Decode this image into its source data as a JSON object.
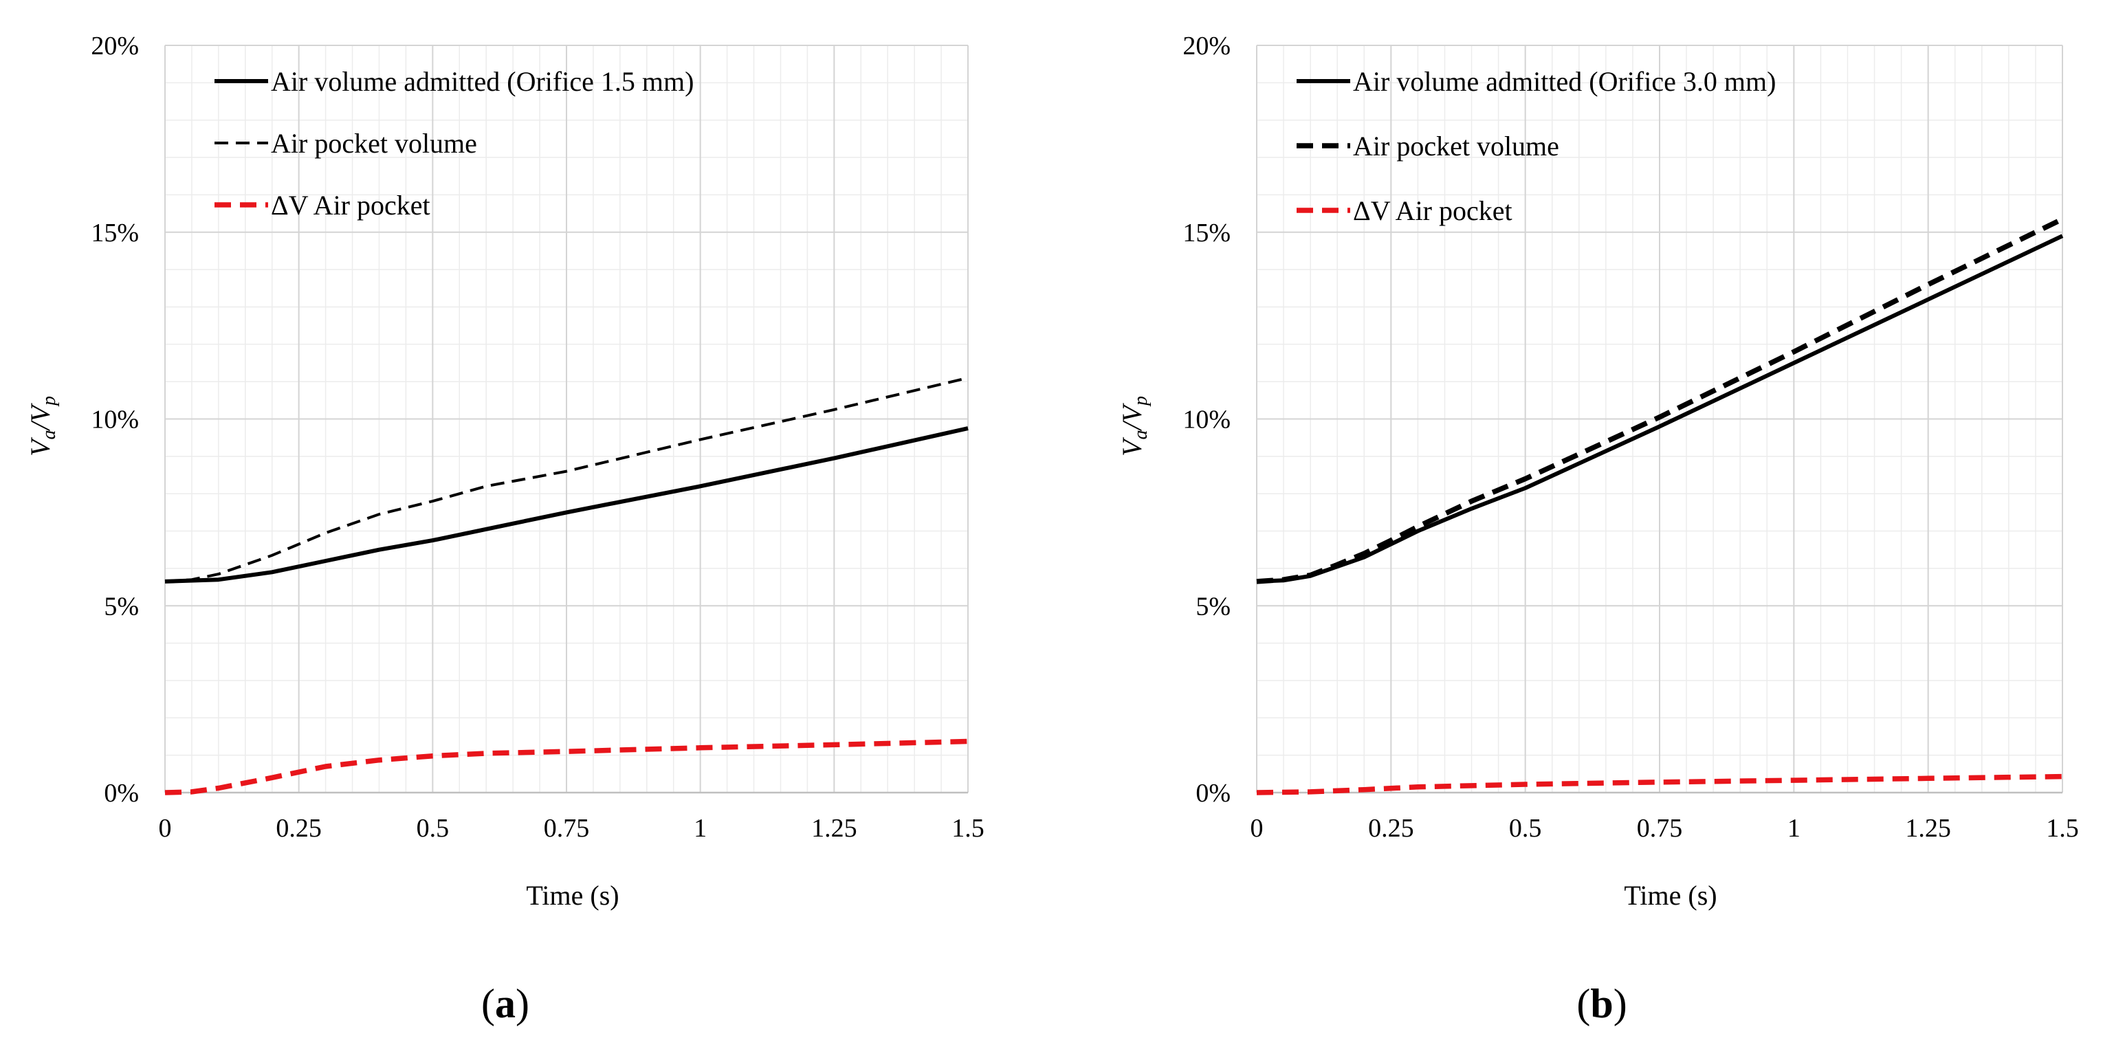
{
  "chart_data": [
    {
      "type": "line",
      "panel_label": "a",
      "xlabel": "Time (s)",
      "ylabel_main": "V",
      "ylabel_sub1": "a",
      "ylabel_sep": "/V",
      "ylabel_sub2": "p",
      "xlim": [
        0,
        1.5
      ],
      "ylim": [
        0,
        20
      ],
      "x_ticks": [
        0,
        0.25,
        0.5,
        0.75,
        1,
        1.25,
        1.5
      ],
      "x_tick_labels": [
        "0",
        "0.25",
        "0.5",
        "0.75",
        "1",
        "1.25",
        "1.5"
      ],
      "y_ticks": [
        0,
        5,
        10,
        15,
        20
      ],
      "y_tick_labels": [
        "0%",
        "5%",
        "10%",
        "15%",
        "20%"
      ],
      "grid": true,
      "legend_position": "top-left",
      "series": [
        {
          "name": "Air volume admitted (Orifice 1.5 mm)",
          "color": "#000000",
          "style": "solid",
          "x": [
            0,
            0.1,
            0.2,
            0.3,
            0.4,
            0.5,
            0.6,
            0.75,
            1.0,
            1.25,
            1.5
          ],
          "y": [
            5.65,
            5.7,
            5.9,
            6.2,
            6.5,
            6.75,
            7.05,
            7.5,
            8.2,
            8.95,
            9.75
          ]
        },
        {
          "name": "Air pocket volume",
          "color": "#000000",
          "style": "dashed-thin",
          "x": [
            0,
            0.05,
            0.1,
            0.2,
            0.3,
            0.4,
            0.5,
            0.6,
            0.75,
            1.0,
            1.25,
            1.5
          ],
          "y": [
            5.65,
            5.7,
            5.85,
            6.35,
            6.95,
            7.45,
            7.8,
            8.2,
            8.6,
            9.45,
            10.25,
            11.1
          ]
        },
        {
          "name": "ΔV Air pocket",
          "color": "#e8151b",
          "style": "dashed-thick",
          "x": [
            0,
            0.05,
            0.1,
            0.2,
            0.3,
            0.4,
            0.5,
            0.6,
            0.75,
            1.0,
            1.25,
            1.5
          ],
          "y": [
            0,
            0.02,
            0.12,
            0.4,
            0.7,
            0.87,
            0.98,
            1.05,
            1.1,
            1.2,
            1.28,
            1.37
          ]
        }
      ]
    },
    {
      "type": "line",
      "panel_label": "b",
      "xlabel": "Time (s)",
      "ylabel_main": "V",
      "ylabel_sub1": "a",
      "ylabel_sep": "/V",
      "ylabel_sub2": "p",
      "xlim": [
        0,
        1.5
      ],
      "ylim": [
        0,
        20
      ],
      "x_ticks": [
        0,
        0.25,
        0.5,
        0.75,
        1,
        1.25,
        1.5
      ],
      "x_tick_labels": [
        "0",
        "0.25",
        "0.5",
        "0.75",
        "1",
        "1.25",
        "1.5"
      ],
      "y_ticks": [
        0,
        5,
        10,
        15,
        20
      ],
      "y_tick_labels": [
        "0%",
        "5%",
        "10%",
        "15%",
        "20%"
      ],
      "grid": true,
      "legend_position": "top-left",
      "series": [
        {
          "name": "Air volume admitted (Orifice 3.0 mm)",
          "color": "#000000",
          "style": "solid",
          "x": [
            0,
            0.05,
            0.1,
            0.15,
            0.2,
            0.25,
            0.3,
            0.4,
            0.5,
            0.75,
            1.0,
            1.25,
            1.5
          ],
          "y": [
            5.65,
            5.68,
            5.8,
            6.05,
            6.3,
            6.65,
            7.0,
            7.6,
            8.15,
            9.8,
            11.5,
            13.2,
            14.9
          ]
        },
        {
          "name": "Air pocket volume",
          "color": "#000000",
          "style": "dashed-thick",
          "x": [
            0,
            0.05,
            0.1,
            0.15,
            0.2,
            0.25,
            0.3,
            0.4,
            0.5,
            0.75,
            1.0,
            1.25,
            1.5
          ],
          "y": [
            5.65,
            5.7,
            5.82,
            6.1,
            6.4,
            6.75,
            7.12,
            7.8,
            8.4,
            10.05,
            11.8,
            13.6,
            15.35
          ]
        },
        {
          "name": "ΔV Air pocket",
          "color": "#e8151b",
          "style": "dashed-thick",
          "x": [
            0,
            0.1,
            0.2,
            0.3,
            0.5,
            0.75,
            1.0,
            1.25,
            1.5
          ],
          "y": [
            0,
            0.02,
            0.08,
            0.15,
            0.22,
            0.28,
            0.33,
            0.38,
            0.43
          ]
        }
      ]
    }
  ]
}
